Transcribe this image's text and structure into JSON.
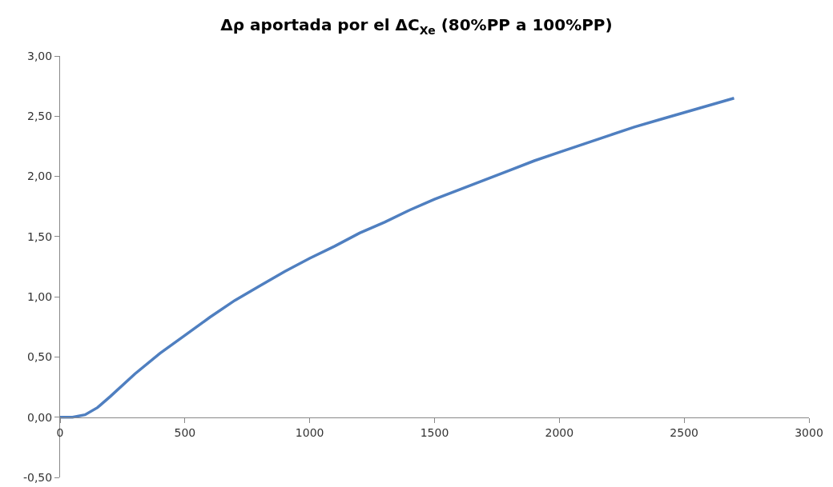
{
  "chart_data": {
    "type": "line",
    "title": "Δρ aportada por el ΔC$_{Xe}$ (80%PP a 100%PP)",
    "x": [
      0,
      50,
      100,
      150,
      200,
      300,
      400,
      500,
      600,
      700,
      800,
      900,
      1000,
      1100,
      1200,
      1300,
      1400,
      1500,
      1600,
      1700,
      1800,
      1900,
      2000,
      2100,
      2200,
      2300,
      2400,
      2500,
      2600,
      2700
    ],
    "series": [
      {
        "color": "#4f7fc0",
        "values": [
          0,
          0,
          0.02,
          0.08,
          0.17,
          0.36,
          0.53,
          0.68,
          0.83,
          0.97,
          1.09,
          1.21,
          1.32,
          1.42,
          1.53,
          1.62,
          1.72,
          1.81,
          1.89,
          1.97,
          2.05,
          2.13,
          2.2,
          2.27,
          2.34,
          2.41,
          2.47,
          2.53,
          2.59,
          2.65
        ]
      }
    ],
    "xlim": [
      0,
      3000
    ],
    "xticks": [
      0,
      500,
      1000,
      1500,
      2000,
      2500,
      3000
    ],
    "ylim": [
      -0.5,
      3
    ],
    "yticks": [
      {
        "value": -0.5,
        "label": "-0,50"
      },
      {
        "value": 0,
        "label": "0,00"
      },
      {
        "value": 0.5,
        "label": "0,50"
      },
      {
        "value": 1,
        "label": "1,00"
      },
      {
        "value": 1.5,
        "label": "1,50"
      },
      {
        "value": 2,
        "label": "2,00"
      },
      {
        "value": 2.5,
        "label": "2,50"
      },
      {
        "value": 3,
        "label": "3,00"
      }
    ],
    "grid": false,
    "marker": "none",
    "line_style": "solid"
  }
}
